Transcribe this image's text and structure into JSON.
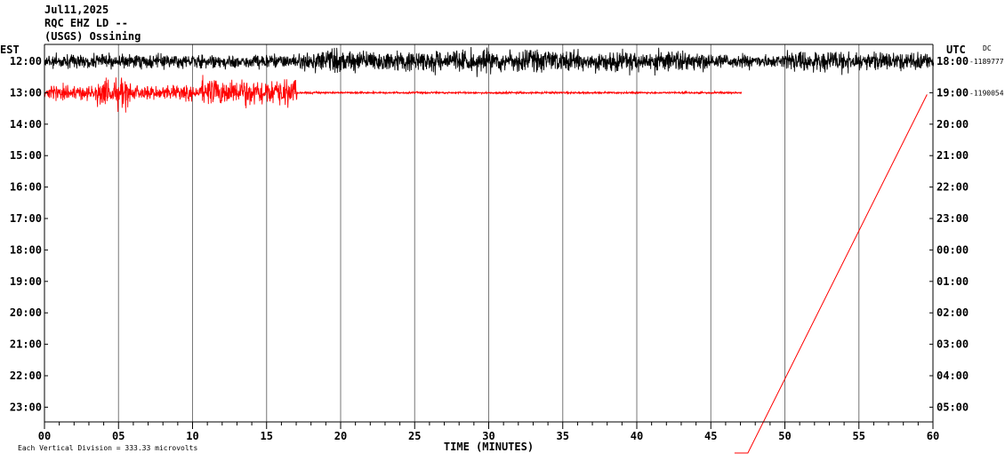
{
  "header": {
    "date": "Jul11,2025",
    "station": "RQC EHZ LD --",
    "network": "(USGS) Ossining"
  },
  "footer": {
    "scale_text": "Each Vertical Division =  333.33 microvolts"
  },
  "chart_data": {
    "type": "line",
    "title": "",
    "xlabel": "TIME (MINUTES)",
    "left_axis_label": "EST",
    "right_axis_label": "UTC",
    "right_corner_label": "DC",
    "x_ticks": [
      "00",
      "05",
      "10",
      "15",
      "20",
      "25",
      "30",
      "35",
      "40",
      "45",
      "50",
      "55",
      "60"
    ],
    "xlim": [
      0,
      60
    ],
    "est_hours": [
      "12:00",
      "13:00",
      "14:00",
      "15:00",
      "16:00",
      "17:00",
      "18:00",
      "19:00",
      "20:00",
      "21:00",
      "22:00",
      "23:00"
    ],
    "utc_hours": [
      "18:00",
      "19:00",
      "20:00",
      "21:00",
      "22:00",
      "23:00",
      "00:00",
      "01:00",
      "02:00",
      "03:00",
      "04:00",
      "05:00"
    ],
    "dc_offsets": [
      {
        "row": 0,
        "value": "-1189777"
      },
      {
        "row": 1,
        "value": "-1190054"
      }
    ],
    "grid_vertical": true,
    "series": [
      {
        "row": 0,
        "color": "#000000",
        "x_start": 0,
        "x_end": 60,
        "segments": [
          {
            "x_start": 0,
            "x_end": 17.5,
            "amplitude": 0.9
          },
          {
            "x_start": 17.5,
            "x_end": 35,
            "amplitude": 1.45
          },
          {
            "x_start": 35,
            "x_end": 45,
            "amplitude": 1.35
          },
          {
            "x_start": 45,
            "x_end": 50,
            "amplitude": 0.9
          },
          {
            "x_start": 50,
            "x_end": 55,
            "amplitude": 1.4
          },
          {
            "x_start": 55,
            "x_end": 60,
            "amplitude": 1.2
          }
        ]
      },
      {
        "row": 1,
        "color": "#ff0000",
        "x_start": 0,
        "x_end": 47,
        "segments": [
          {
            "x_start": 0,
            "x_end": 3.5,
            "amplitude": 0.9
          },
          {
            "x_start": 3.5,
            "x_end": 6,
            "amplitude": 1.8
          },
          {
            "x_start": 6,
            "x_end": 10.5,
            "amplitude": 0.9
          },
          {
            "x_start": 10.5,
            "x_end": 17,
            "amplitude": 1.8
          },
          {
            "x_start": 17,
            "x_end": 47,
            "amplitude": 0.12
          }
        ]
      }
    ],
    "partial_trace": {
      "color": "#ff0000",
      "from_minute": 47.5,
      "to_minute": 59.6
    }
  }
}
